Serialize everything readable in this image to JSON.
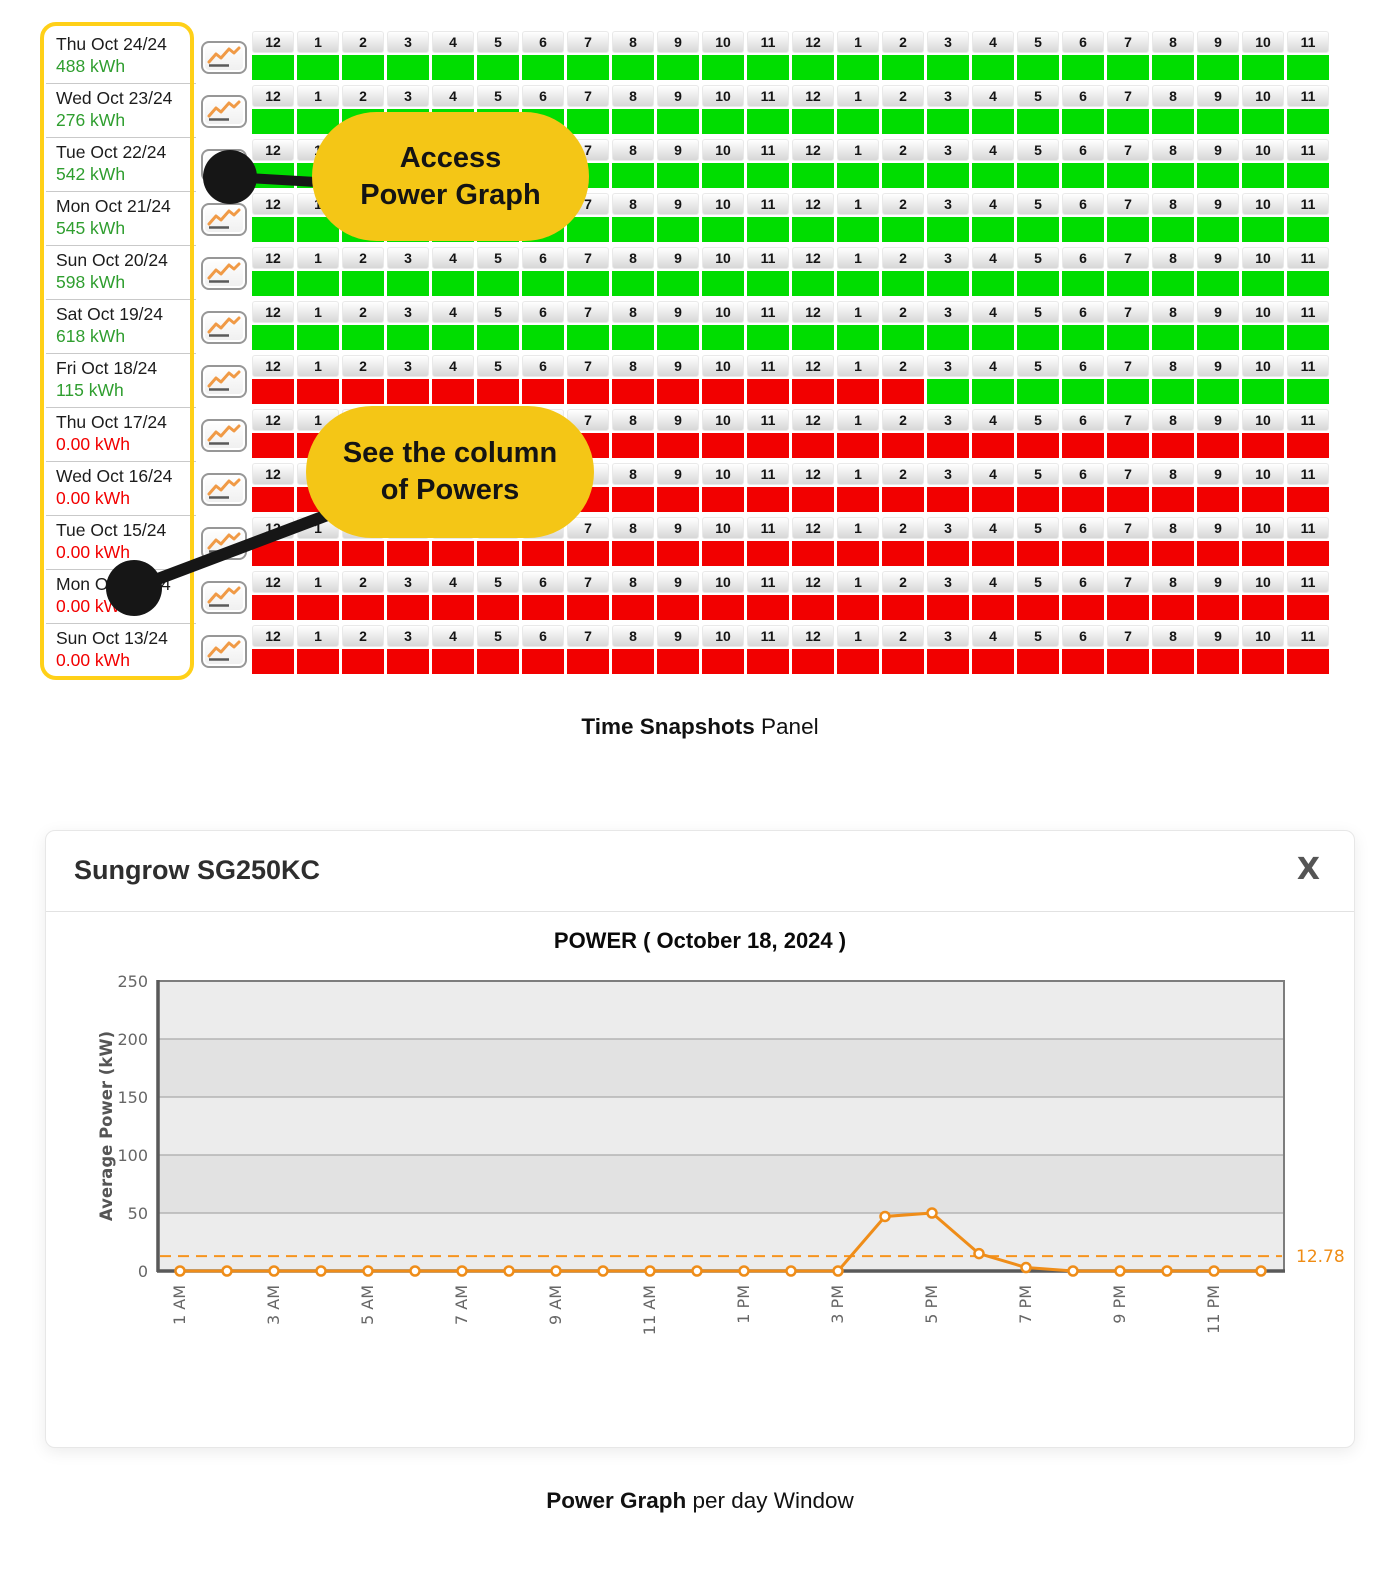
{
  "snapshot_panel": {
    "hours_header": [
      "12",
      "1",
      "2",
      "3",
      "4",
      "5",
      "6",
      "7",
      "8",
      "9",
      "10",
      "11",
      "12",
      "1",
      "2",
      "3",
      "4",
      "5",
      "6",
      "7",
      "8",
      "9",
      "10",
      "11"
    ],
    "rows": [
      {
        "date": "Thu Oct 24/24",
        "energy": "488 kWh",
        "energy_status": "ok",
        "cells": "GGGGGGGGGGGGGGGGGGGGGGGG"
      },
      {
        "date": "Wed Oct 23/24",
        "energy": "276 kWh",
        "energy_status": "ok",
        "cells": "GGGGGGGGGGGGGGGGGGGGGGGG"
      },
      {
        "date": "Tue Oct 22/24",
        "energy": "542 kWh",
        "energy_status": "ok",
        "cells": "GGGGGGGGGGGGGGGGGGGGGGGG"
      },
      {
        "date": "Mon Oct 21/24",
        "energy": "545 kWh",
        "energy_status": "ok",
        "cells": "GGGGGGGGGGGGGGGGGGGGGGGG"
      },
      {
        "date": "Sun Oct 20/24",
        "energy": "598 kWh",
        "energy_status": "ok",
        "cells": "GGGGGGGGGGGGGGGGGGGGGGGG"
      },
      {
        "date": "Sat Oct 19/24",
        "energy": "618 kWh",
        "energy_status": "ok",
        "cells": "GGGGGGGGGGGGGGGGGGGGGGGG"
      },
      {
        "date": "Fri Oct 18/24",
        "energy": "115 kWh",
        "energy_status": "ok",
        "cells": "RRRRRRRRRRRRRRRGGGGGGGGG"
      },
      {
        "date": "Thu Oct 17/24",
        "energy": "0.00 kWh",
        "energy_status": "zero",
        "cells": "RRRRRRRRRRRRRRRRRRRRRRRR"
      },
      {
        "date": "Wed Oct 16/24",
        "energy": "0.00 kWh",
        "energy_status": "zero",
        "cells": "RRRRRRRRRRRRRRRRRRRRRRRR"
      },
      {
        "date": "Tue Oct 15/24",
        "energy": "0.00 kWh",
        "energy_status": "zero",
        "cells": "RRRRRRRRRRRRRRRRRRRRRRRR"
      },
      {
        "date": "Mon Oct 14/24",
        "energy": "0.00 kWh",
        "energy_status": "zero",
        "cells": "RRRRRRRRRRRRRRRRRRRRRRRR"
      },
      {
        "date": "Sun Oct 13/24",
        "energy": "0.00 kWh",
        "energy_status": "zero",
        "cells": "RRRRRRRRRRRRRRRRRRRRRRRR"
      }
    ]
  },
  "callouts": {
    "access": {
      "line1": "Access",
      "line2": "Power Graph"
    },
    "powers": {
      "line1": "See the column",
      "line2": "of Powers"
    }
  },
  "captions": {
    "snapshots_bold": "Time Snapshots",
    "snapshots_rest": " Panel",
    "power_bold": "Power Graph",
    "power_rest": " per day Window"
  },
  "modal": {
    "title": "Sungrow SG250KC",
    "close_label": "X",
    "chart_title": "POWER ( October 18, 2024 )"
  },
  "chart_data": {
    "type": "line",
    "title": "POWER ( October 18, 2024 )",
    "x": [
      "1 AM",
      "2 AM",
      "3 AM",
      "4 AM",
      "5 AM",
      "6 AM",
      "7 AM",
      "8 AM",
      "9 AM",
      "10 AM",
      "11 AM",
      "12 PM",
      "1 PM",
      "2 PM",
      "3 PM",
      "4 PM",
      "5 PM",
      "6 PM",
      "7 PM",
      "8 PM",
      "9 PM",
      "10 PM",
      "11 PM",
      "12 AM"
    ],
    "values": [
      0,
      0,
      0,
      0,
      0,
      0,
      0,
      0,
      0,
      0,
      0,
      0,
      0,
      0,
      0,
      47,
      50,
      15,
      3,
      0,
      0,
      0,
      0,
      0
    ],
    "x_tick_labels": [
      "1 AM",
      "3 AM",
      "5 AM",
      "7 AM",
      "9 AM",
      "11 AM",
      "1 PM",
      "3 PM",
      "5 PM",
      "7 PM",
      "9 PM",
      "11 PM"
    ],
    "ylabel": "Average Power (kW)",
    "yticks": [
      0,
      50,
      100,
      150,
      200,
      250
    ],
    "ylim": [
      0,
      250
    ],
    "avg_line": 12.78,
    "avg_label": "12.78",
    "grid": "horizontal",
    "legend": "none"
  },
  "colors": {
    "cell_ok": "#00dd00",
    "cell_bad": "#f20000",
    "energy_ok": "#2f9e2f",
    "energy_zero": "#f20000",
    "bubble": "#f4c616",
    "highlight": "#ffd018",
    "line": "#ef8d19",
    "avg": "#f6941e"
  }
}
